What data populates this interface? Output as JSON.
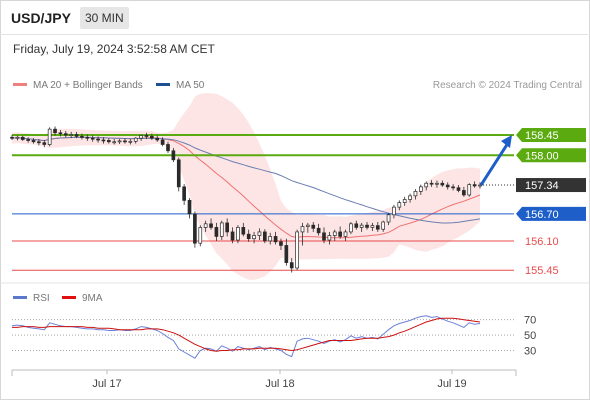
{
  "header": {
    "symbol": "USD/JPY",
    "timeframe": "30 MIN"
  },
  "datetime": "Friday, July 19, 2024 3:52:58 AM CET",
  "legend": {
    "ma_bb": "MA 20 + Bollinger Bands",
    "ma50": "MA 50",
    "rsi": "RSI",
    "rsi_ma": "9MA"
  },
  "credit": "Research © 2024 Trading Central",
  "colors": {
    "resistance": "#5aaa10",
    "pivot": "#1d5ec9",
    "support": "#e84c4c",
    "bollinger_fill": "#fde0e0",
    "ma20": "#f07070",
    "ma50": "#6b7fb0",
    "rsi_line": "#6a80d8",
    "rsi_ma_line": "#cc1010",
    "candle": "#2a2a2a",
    "price_tag": "#333333",
    "arrow": "#1d5ec9"
  },
  "chart_data": {
    "type": "candlestick",
    "ylim": [
      155.3,
      158.65
    ],
    "levels": [
      {
        "value": 158.45,
        "label": "158.45",
        "kind": "resistance"
      },
      {
        "value": 158.0,
        "label": "158.00",
        "kind": "resistance"
      },
      {
        "value": 157.34,
        "label": "157.34",
        "kind": "last"
      },
      {
        "value": 156.7,
        "label": "156.70",
        "kind": "pivot"
      },
      {
        "value": 156.1,
        "label": "156.10",
        "kind": "support"
      },
      {
        "value": 155.45,
        "label": "155.45",
        "kind": "support"
      }
    ],
    "candles_ohlc": [
      [
        158.4,
        158.45,
        158.34,
        158.38
      ],
      [
        158.38,
        158.44,
        158.33,
        158.4
      ],
      [
        158.4,
        158.43,
        158.32,
        158.35
      ],
      [
        158.35,
        158.4,
        158.28,
        158.33
      ],
      [
        158.33,
        158.38,
        158.26,
        158.3
      ],
      [
        158.3,
        158.36,
        158.22,
        158.28
      ],
      [
        158.28,
        158.34,
        158.18,
        158.24
      ],
      [
        158.24,
        158.62,
        158.2,
        158.58
      ],
      [
        158.58,
        158.64,
        158.44,
        158.5
      ],
      [
        158.5,
        158.56,
        158.42,
        158.48
      ],
      [
        158.48,
        158.54,
        158.4,
        158.45
      ],
      [
        158.45,
        158.52,
        158.38,
        158.46
      ],
      [
        158.46,
        158.52,
        158.38,
        158.42
      ],
      [
        158.42,
        158.48,
        158.35,
        158.4
      ],
      [
        158.4,
        158.46,
        158.32,
        158.38
      ],
      [
        158.38,
        158.44,
        158.3,
        158.36
      ],
      [
        158.36,
        158.42,
        158.28,
        158.34
      ],
      [
        158.34,
        158.4,
        158.26,
        158.33
      ],
      [
        158.33,
        158.38,
        158.26,
        158.3
      ],
      [
        158.3,
        158.36,
        158.24,
        158.3
      ],
      [
        158.3,
        158.36,
        158.25,
        158.32
      ],
      [
        158.32,
        158.38,
        158.26,
        158.3
      ],
      [
        158.3,
        158.36,
        158.24,
        158.31
      ],
      [
        158.31,
        158.4,
        158.26,
        158.38
      ],
      [
        158.38,
        158.46,
        158.32,
        158.44
      ],
      [
        158.44,
        158.5,
        158.36,
        158.42
      ],
      [
        158.42,
        158.48,
        158.34,
        158.38
      ],
      [
        158.38,
        158.44,
        158.3,
        158.34
      ],
      [
        158.34,
        158.4,
        158.2,
        158.24
      ],
      [
        158.24,
        158.3,
        158.05,
        158.1
      ],
      [
        158.1,
        158.16,
        157.85,
        157.9
      ],
      [
        157.9,
        157.95,
        157.2,
        157.3
      ],
      [
        157.3,
        157.36,
        156.9,
        157.0
      ],
      [
        157.0,
        157.05,
        156.6,
        156.7
      ],
      [
        156.7,
        156.75,
        155.95,
        156.05
      ],
      [
        156.05,
        156.45,
        155.98,
        156.4
      ],
      [
        156.4,
        156.55,
        156.3,
        156.48
      ],
      [
        156.48,
        156.6,
        156.35,
        156.4
      ],
      [
        156.4,
        156.5,
        156.1,
        156.2
      ],
      [
        156.2,
        156.55,
        156.12,
        156.5
      ],
      [
        156.5,
        156.6,
        156.2,
        156.3
      ],
      [
        156.3,
        156.4,
        156.05,
        156.12
      ],
      [
        156.12,
        156.45,
        156.05,
        156.4
      ],
      [
        156.4,
        156.5,
        156.2,
        156.25
      ],
      [
        156.25,
        156.35,
        156.08,
        156.15
      ],
      [
        156.15,
        156.3,
        156.05,
        156.22
      ],
      [
        156.22,
        156.38,
        156.12,
        156.3
      ],
      [
        156.3,
        156.36,
        156.05,
        156.1
      ],
      [
        156.1,
        156.28,
        156.02,
        156.2
      ],
      [
        156.2,
        156.3,
        156.02,
        156.08
      ],
      [
        156.08,
        156.15,
        155.9,
        156.0
      ],
      [
        156.0,
        156.15,
        155.55,
        155.62
      ],
      [
        155.62,
        155.72,
        155.4,
        155.5
      ],
      [
        155.5,
        156.35,
        155.45,
        156.3
      ],
      [
        156.3,
        156.5,
        156.0,
        156.42
      ],
      [
        156.42,
        156.5,
        156.28,
        156.45
      ],
      [
        156.45,
        156.52,
        156.3,
        156.38
      ],
      [
        156.38,
        156.48,
        156.22,
        156.28
      ],
      [
        156.28,
        156.4,
        156.05,
        156.12
      ],
      [
        156.12,
        156.3,
        156.02,
        156.22
      ],
      [
        156.22,
        156.35,
        156.1,
        156.3
      ],
      [
        156.3,
        156.42,
        156.15,
        156.2
      ],
      [
        156.2,
        156.35,
        156.1,
        156.3
      ],
      [
        156.3,
        156.52,
        156.25,
        156.48
      ],
      [
        156.48,
        156.55,
        156.35,
        156.4
      ],
      [
        156.4,
        156.5,
        156.3,
        156.45
      ],
      [
        156.45,
        156.52,
        156.35,
        156.4
      ],
      [
        156.4,
        156.5,
        156.32,
        156.44
      ],
      [
        156.44,
        156.52,
        156.3,
        156.36
      ],
      [
        156.36,
        156.55,
        156.3,
        156.52
      ],
      [
        156.52,
        156.72,
        156.45,
        156.68
      ],
      [
        156.68,
        156.9,
        156.6,
        156.85
      ],
      [
        156.85,
        157.0,
        156.78,
        156.95
      ],
      [
        156.95,
        157.08,
        156.88,
        157.02
      ],
      [
        157.02,
        157.15,
        156.95,
        157.1
      ],
      [
        157.1,
        157.25,
        157.02,
        157.2
      ],
      [
        157.2,
        157.35,
        157.12,
        157.3
      ],
      [
        157.3,
        157.42,
        157.22,
        157.38
      ],
      [
        157.38,
        157.45,
        157.3,
        157.36
      ],
      [
        157.36,
        157.44,
        157.28,
        157.38
      ],
      [
        157.38,
        157.44,
        157.3,
        157.34
      ],
      [
        157.34,
        157.4,
        157.24,
        157.3
      ],
      [
        157.3,
        157.36,
        157.22,
        157.28
      ],
      [
        157.28,
        157.34,
        157.18,
        157.22
      ],
      [
        157.22,
        157.3,
        157.08,
        157.12
      ],
      [
        157.12,
        157.38,
        157.08,
        157.35
      ],
      [
        157.35,
        157.42,
        157.28,
        157.32
      ],
      [
        157.32,
        157.4,
        157.26,
        157.34
      ]
    ],
    "rsi": {
      "levels": [
        70,
        50,
        30
      ],
      "ylim": [
        15,
        80
      ],
      "values": [
        62,
        63,
        62,
        60,
        59,
        58,
        57,
        66,
        64,
        62,
        61,
        61,
        60,
        59,
        58,
        58,
        57,
        57,
        56,
        56,
        57,
        56,
        56,
        58,
        61,
        60,
        58,
        56,
        52,
        47,
        43,
        32,
        28,
        24,
        20,
        30,
        33,
        32,
        29,
        36,
        33,
        29,
        35,
        33,
        31,
        33,
        35,
        31,
        34,
        32,
        30,
        25,
        22,
        42,
        45,
        46,
        44,
        42,
        39,
        42,
        44,
        41,
        44,
        49,
        46,
        48,
        46,
        47,
        45,
        51,
        57,
        62,
        65,
        67,
        69,
        72,
        74,
        75,
        73,
        74,
        71,
        68,
        66,
        63,
        60,
        66,
        64,
        65
      ],
      "ma9": [
        60,
        60,
        61,
        61,
        61,
        60,
        60,
        61,
        61,
        61,
        61,
        61,
        61,
        61,
        60,
        60,
        59,
        59,
        59,
        58,
        57,
        57,
        57,
        57,
        57,
        58,
        58,
        58,
        57,
        55,
        53,
        50,
        46,
        42,
        38,
        35,
        32,
        30,
        29,
        30,
        30,
        31,
        31,
        32,
        32,
        32,
        33,
        33,
        33,
        33,
        32,
        31,
        30,
        31,
        33,
        35,
        37,
        39,
        41,
        43,
        43,
        43,
        43,
        43,
        44,
        45,
        46,
        46,
        46,
        47,
        48,
        50,
        53,
        55,
        58,
        61,
        64,
        67,
        69,
        71,
        72,
        72,
        72,
        71,
        70,
        69,
        68,
        67
      ]
    },
    "x_ticks": [
      "Jul 17",
      "Jul 18",
      "Jul 19"
    ]
  }
}
